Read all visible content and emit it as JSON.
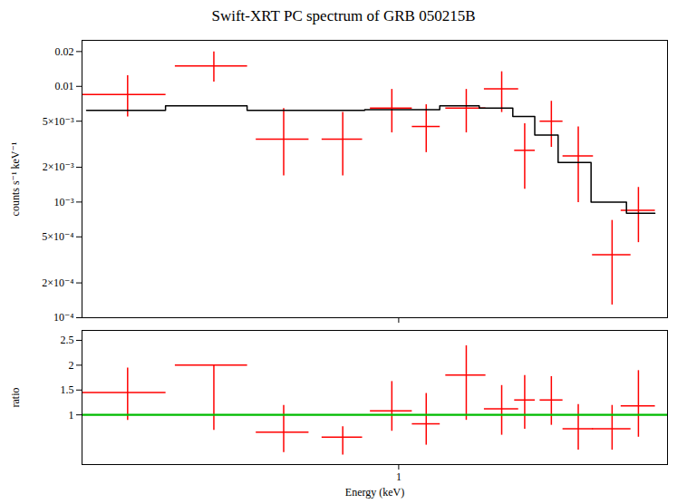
{
  "chart_data": [
    {
      "type": "errorbar",
      "title": "Swift-XRT PC spectrum of GRB 050215B",
      "ylabel": "counts s⁻¹ keV⁻¹",
      "log": true,
      "xlim": [
        0.245,
        3.3
      ],
      "ylim": [
        0.0001,
        0.025
      ],
      "xticks": [
        1
      ],
      "yticks": [
        {
          "value": 0.0001,
          "label": "10⁻⁴"
        },
        {
          "value": 0.0002,
          "label": "2×10⁻⁴"
        },
        {
          "value": 0.0005,
          "label": "5×10⁻⁴"
        },
        {
          "value": 0.001,
          "label": "10⁻³"
        },
        {
          "value": 0.002,
          "label": "2×10⁻³"
        },
        {
          "value": 0.005,
          "label": "5×10⁻³"
        },
        0.01,
        0.02
      ],
      "tick_labels": "y",
      "series": [
        {
          "type": "errorbar",
          "color": "#ff0000",
          "x": [
            0.3,
            0.44,
            0.6,
            0.78,
            0.97,
            1.13,
            1.35,
            1.58,
            1.75,
            1.97,
            2.22,
            2.58,
            2.9
          ],
          "xerr_lo": [
            0.055,
            0.07,
            0.07,
            0.07,
            0.09,
            0.07,
            0.12,
            0.12,
            0.08,
            0.1,
            0.15,
            0.22,
            0.22
          ],
          "xerr_hi": [
            0.055,
            0.07,
            0.07,
            0.07,
            0.09,
            0.07,
            0.12,
            0.12,
            0.08,
            0.1,
            0.15,
            0.22,
            0.22
          ],
          "values": [
            0.0085,
            0.015,
            0.0035,
            0.0035,
            0.0065,
            0.0045,
            0.0065,
            0.0095,
            0.0028,
            0.005,
            0.0025,
            0.00035,
            0.00085
          ],
          "yerr_lo": [
            0.003,
            0.004,
            0.0018,
            0.0018,
            0.0025,
            0.0018,
            0.0025,
            0.0035,
            0.0015,
            0.002,
            0.0015,
            0.00022,
            0.0004
          ],
          "yerr_hi": [
            0.004,
            0.005,
            0.003,
            0.0025,
            0.003,
            0.0025,
            0.003,
            0.004,
            0.002,
            0.0025,
            0.002,
            0.00035,
            0.0005
          ]
        },
        {
          "type": "step",
          "color": "#000000",
          "bins": [
            0.25,
            0.355,
            0.51,
            0.67,
            0.86,
            1.03,
            1.2,
            1.43,
            1.66,
            1.83,
            2.03,
            2.35,
            2.75,
            3.12
          ],
          "values": [
            0.0062,
            0.0068,
            0.0062,
            0.0062,
            0.0063,
            0.0063,
            0.0068,
            0.0065,
            0.0055,
            0.0038,
            0.0022,
            0.001,
            0.0008
          ]
        }
      ]
    },
    {
      "type": "errorbar",
      "xlabel": "Energy (keV)",
      "ylabel": "ratio",
      "log": "x",
      "xlim": [
        0.245,
        3.3
      ],
      "ylim": [
        0.0,
        2.7
      ],
      "xticks": [
        1
      ],
      "yticks": [
        1,
        1.5,
        2,
        2.5
      ],
      "series": [
        {
          "type": "errorbar",
          "color": "#ff0000",
          "x": [
            0.3,
            0.44,
            0.6,
            0.78,
            0.97,
            1.13,
            1.35,
            1.58,
            1.75,
            1.97,
            2.22,
            2.58,
            2.9
          ],
          "xerr_lo": [
            0.055,
            0.07,
            0.07,
            0.07,
            0.09,
            0.07,
            0.12,
            0.12,
            0.08,
            0.1,
            0.15,
            0.22,
            0.22
          ],
          "xerr_hi": [
            0.055,
            0.07,
            0.07,
            0.07,
            0.09,
            0.07,
            0.12,
            0.12,
            0.08,
            0.1,
            0.15,
            0.22,
            0.22
          ],
          "values": [
            1.45,
            2.0,
            0.65,
            0.55,
            1.08,
            0.82,
            1.8,
            1.12,
            1.3,
            1.3,
            0.72,
            0.72,
            1.18
          ],
          "yerr_lo": [
            0.55,
            1.3,
            0.4,
            0.35,
            0.4,
            0.42,
            0.9,
            0.52,
            0.58,
            0.5,
            0.42,
            0.42,
            0.62
          ],
          "yerr_hi": [
            0.5,
            0.01,
            0.55,
            0.22,
            0.6,
            0.62,
            0.6,
            0.48,
            0.5,
            0.48,
            0.5,
            0.48,
            0.72
          ]
        },
        {
          "type": "hline",
          "color": "#00bb00",
          "values": [
            1.0
          ]
        }
      ]
    }
  ]
}
